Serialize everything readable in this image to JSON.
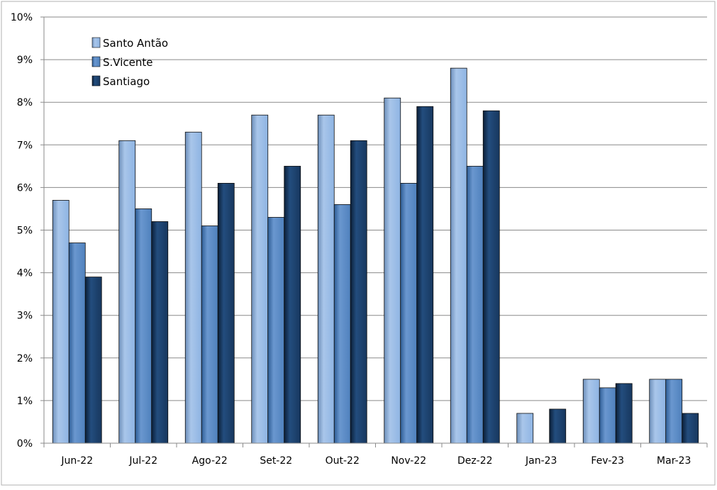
{
  "chart_data": {
    "type": "bar",
    "title": "",
    "xlabel": "",
    "ylabel": "",
    "categories": [
      "Jun-22",
      "Jul-22",
      "Ago-22",
      "Set-22",
      "Out-22",
      "Nov-22",
      "Dez-22",
      "Jan-23",
      "Fev-23",
      "Mar-23"
    ],
    "series": [
      {
        "name": "Santo Antão",
        "color": "#8eb4e3",
        "values": [
          5.7,
          7.1,
          7.3,
          7.7,
          7.7,
          8.1,
          8.8,
          0.7,
          1.5,
          1.5
        ]
      },
      {
        "name": "S.Vicente",
        "color": "#4f81bd",
        "values": [
          4.7,
          5.5,
          5.1,
          5.3,
          5.6,
          6.1,
          6.5,
          0.0,
          1.3,
          1.5
        ]
      },
      {
        "name": "Santiago",
        "color": "#17375e",
        "values": [
          3.9,
          5.2,
          6.1,
          6.5,
          7.1,
          7.9,
          7.8,
          0.8,
          1.4,
          0.7
        ]
      }
    ],
    "ylim": [
      0,
      10
    ],
    "yticks": [
      0,
      1,
      2,
      3,
      4,
      5,
      6,
      7,
      8,
      9,
      10
    ],
    "ytick_labels": [
      "0%",
      "1%",
      "2%",
      "3%",
      "4%",
      "5%",
      "6%",
      "7%",
      "8%",
      "9%",
      "10%"
    ],
    "grid": true,
    "legend_position": "top-left"
  }
}
